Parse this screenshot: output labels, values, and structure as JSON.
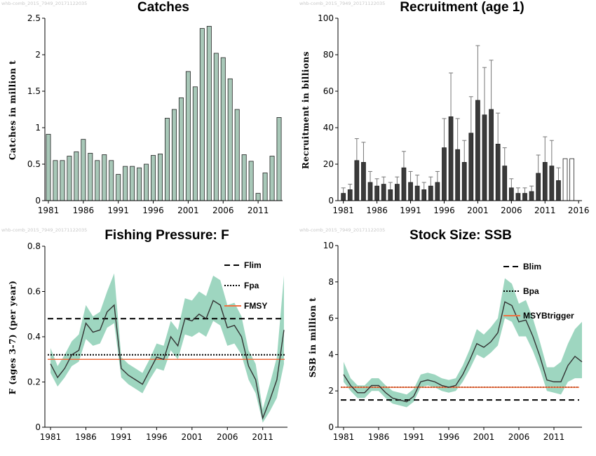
{
  "watermark": "whb-comb_2015_7949_20171122035",
  "colors": {
    "catch_bar": "#a8c8b8",
    "rec_bar": "#3a3a3a",
    "band": "#9ed6c0",
    "line": "#333333",
    "lim": "#000000",
    "msy": "#f07040"
  },
  "chart_data": [
    {
      "type": "bar",
      "title": "Catches",
      "ylabel": "Catches in million t",
      "xlim": [
        1980.5,
        2014.5
      ],
      "ylim": [
        0,
        2.5
      ],
      "xticks": [
        1981,
        1986,
        1991,
        1996,
        2001,
        2006,
        2011
      ],
      "xtick_labels": [
        "1981",
        "1986",
        "1991",
        "1996",
        "2001",
        "2006",
        "2011"
      ],
      "yticks": [
        0,
        0.5,
        1,
        1.5,
        2,
        2.5
      ],
      "ytick_labels": [
        "0",
        "0.5",
        "1",
        "1.5",
        "2",
        "2.5"
      ],
      "years": [
        1981,
        1982,
        1983,
        1984,
        1985,
        1986,
        1987,
        1988,
        1989,
        1990,
        1991,
        1992,
        1993,
        1994,
        1995,
        1996,
        1997,
        1998,
        1999,
        2000,
        2001,
        2002,
        2003,
        2004,
        2005,
        2006,
        2007,
        2008,
        2009,
        2010,
        2011,
        2012,
        2013,
        2014
      ],
      "values": [
        0.91,
        0.55,
        0.55,
        0.61,
        0.67,
        0.84,
        0.65,
        0.55,
        0.63,
        0.55,
        0.36,
        0.47,
        0.47,
        0.45,
        0.5,
        0.62,
        0.64,
        1.13,
        1.25,
        1.41,
        1.77,
        1.56,
        2.36,
        2.39,
        2.02,
        1.96,
        1.67,
        1.25,
        0.63,
        0.54,
        0.1,
        0.38,
        0.61,
        1.14
      ]
    },
    {
      "type": "bar",
      "title": "Recruitment (age 1)",
      "ylabel": "Recruitment in billions",
      "xlim": [
        1980.2,
        2016.5
      ],
      "ylim": [
        0,
        100
      ],
      "xticks": [
        1981,
        1986,
        1991,
        1996,
        2001,
        2006,
        2011,
        2016
      ],
      "xtick_labels": [
        "1981",
        "1986",
        "1991",
        "1996",
        "2001",
        "2006",
        "2011",
        "2016"
      ],
      "yticks": [
        0,
        20,
        40,
        60,
        80,
        100
      ],
      "ytick_labels": [
        "0",
        "20",
        "40",
        "60",
        "80",
        "100"
      ],
      "years": [
        1981,
        1982,
        1983,
        1984,
        1985,
        1986,
        1987,
        1988,
        1989,
        1990,
        1991,
        1992,
        1993,
        1994,
        1995,
        1996,
        1997,
        1998,
        1999,
        2000,
        2001,
        2002,
        2003,
        2004,
        2005,
        2006,
        2007,
        2008,
        2009,
        2010,
        2011,
        2012,
        2013
      ],
      "values": [
        4,
        6,
        22,
        21,
        10,
        8,
        9,
        6,
        9,
        18,
        10,
        8,
        6,
        8,
        10,
        29,
        46,
        28,
        21,
        37,
        55,
        47,
        50,
        31,
        19,
        7,
        4,
        4,
        5,
        15,
        21,
        19,
        11
      ],
      "upper": [
        7,
        9,
        34,
        32,
        16,
        12,
        13,
        10,
        13,
        27,
        16,
        14,
        10,
        13,
        16,
        45,
        70,
        45,
        33,
        57,
        85,
        73,
        77,
        48,
        29,
        12,
        7,
        7,
        8,
        25,
        35,
        33,
        18
      ],
      "assumed_years": [
        2014,
        2015
      ],
      "assumed_values": [
        23,
        23
      ]
    },
    {
      "type": "line",
      "title": "Fishing Pressure: F",
      "ylabel": "F (ages 3-7) (per year)",
      "xlim": [
        1980.2,
        2014.5
      ],
      "ylim": [
        0,
        0.8
      ],
      "xticks": [
        1981,
        1986,
        1991,
        1996,
        2001,
        2006,
        2011
      ],
      "xtick_labels": [
        "1981",
        "1986",
        "1991",
        "1996",
        "2001",
        "2006",
        "2011"
      ],
      "yticks": [
        0,
        0.2,
        0.4,
        0.6,
        0.8
      ],
      "ytick_labels": [
        "0",
        "0.2",
        "0.4",
        "0.6",
        "0.8"
      ],
      "years": [
        1981,
        1982,
        1983,
        1984,
        1985,
        1986,
        1987,
        1988,
        1989,
        1990,
        1991,
        1992,
        1993,
        1994,
        1995,
        1996,
        1997,
        1998,
        1999,
        2000,
        2001,
        2002,
        2003,
        2004,
        2005,
        2006,
        2007,
        2008,
        2009,
        2010,
        2011,
        2012,
        2013,
        2014
      ],
      "values": [
        0.28,
        0.22,
        0.26,
        0.32,
        0.34,
        0.46,
        0.42,
        0.43,
        0.51,
        0.54,
        0.26,
        0.23,
        0.21,
        0.19,
        0.25,
        0.31,
        0.3,
        0.4,
        0.36,
        0.48,
        0.47,
        0.5,
        0.48,
        0.56,
        0.54,
        0.44,
        0.45,
        0.4,
        0.27,
        0.21,
        0.04,
        0.12,
        0.21,
        0.43
      ],
      "lower": [
        0.24,
        0.18,
        0.22,
        0.27,
        0.29,
        0.39,
        0.36,
        0.37,
        0.44,
        0.46,
        0.22,
        0.19,
        0.17,
        0.15,
        0.21,
        0.26,
        0.25,
        0.34,
        0.3,
        0.41,
        0.4,
        0.42,
        0.4,
        0.47,
        0.45,
        0.36,
        0.37,
        0.32,
        0.21,
        0.15,
        0.02,
        0.07,
        0.13,
        0.28
      ],
      "upper": [
        0.35,
        0.27,
        0.32,
        0.38,
        0.41,
        0.54,
        0.49,
        0.51,
        0.6,
        0.68,
        0.31,
        0.28,
        0.26,
        0.24,
        0.3,
        0.37,
        0.36,
        0.47,
        0.43,
        0.57,
        0.56,
        0.6,
        0.58,
        0.67,
        0.65,
        0.54,
        0.55,
        0.49,
        0.34,
        0.28,
        0.08,
        0.19,
        0.31,
        0.67
      ],
      "reference_lines": [
        {
          "name": "Flim",
          "value": 0.48,
          "style": "dashed",
          "color": "#000000"
        },
        {
          "name": "Fpa",
          "value": 0.32,
          "style": "dotted",
          "color": "#000000"
        },
        {
          "name": "FMSY",
          "value": 0.3,
          "style": "solid",
          "color": "#f07040"
        }
      ]
    },
    {
      "type": "line",
      "title": "Stock Size: SSB",
      "ylabel": "SSB in million t",
      "xlim": [
        1980.2,
        2015
      ],
      "ylim": [
        0,
        10
      ],
      "xticks": [
        1981,
        1986,
        1991,
        1996,
        2001,
        2006,
        2011
      ],
      "xtick_labels": [
        "1981",
        "1986",
        "1991",
        "1996",
        "2001",
        "2006",
        "2011"
      ],
      "yticks": [
        0,
        2,
        4,
        6,
        8,
        10
      ],
      "ytick_labels": [
        "0",
        "2",
        "4",
        "6",
        "8",
        "10"
      ],
      "years": [
        1981,
        1982,
        1983,
        1984,
        1985,
        1986,
        1987,
        1988,
        1989,
        1990,
        1991,
        1992,
        1993,
        1994,
        1995,
        1996,
        1997,
        1998,
        1999,
        2000,
        2001,
        2002,
        2003,
        2004,
        2005,
        2006,
        2007,
        2008,
        2009,
        2010,
        2011,
        2012,
        2013,
        2014,
        2015
      ],
      "values": [
        2.9,
        2.3,
        1.9,
        1.9,
        2.3,
        2.3,
        1.9,
        1.6,
        1.5,
        1.4,
        1.7,
        2.5,
        2.6,
        2.5,
        2.3,
        2.2,
        2.3,
        2.9,
        3.7,
        4.6,
        4.4,
        4.7,
        5.2,
        6.9,
        6.7,
        5.8,
        5.9,
        5.0,
        3.9,
        2.6,
        2.5,
        2.5,
        3.4,
        3.9,
        3.6
      ],
      "lower": [
        2.5,
        2.0,
        1.6,
        1.6,
        2.0,
        2.0,
        1.6,
        1.3,
        1.2,
        1.1,
        1.4,
        2.2,
        2.3,
        2.2,
        2.0,
        1.9,
        2.0,
        2.5,
        3.2,
        4.0,
        3.8,
        4.1,
        4.5,
        6.0,
        5.8,
        5.0,
        5.0,
        4.2,
        3.2,
        2.0,
        1.9,
        1.8,
        2.5,
        2.7,
        2.7
      ],
      "upper": [
        3.6,
        2.7,
        2.3,
        2.3,
        2.7,
        2.7,
        2.3,
        2.0,
        1.9,
        1.8,
        2.1,
        2.9,
        3.0,
        2.9,
        2.7,
        2.6,
        2.7,
        3.4,
        4.3,
        5.4,
        5.1,
        5.5,
        6.0,
        8.2,
        7.9,
        6.8,
        7.0,
        6.0,
        4.7,
        3.3,
        3.3,
        3.6,
        4.6,
        5.4,
        5.8
      ],
      "reference_lines": [
        {
          "name": "Blim",
          "value": 1.5,
          "style": "dashed",
          "color": "#000000"
        },
        {
          "name": "Bpa",
          "value": 2.2,
          "style": "dotted",
          "color": "#000000"
        },
        {
          "name": "MSYBtrigger",
          "value": 2.2,
          "style": "solid",
          "color": "#f07040"
        }
      ]
    }
  ]
}
